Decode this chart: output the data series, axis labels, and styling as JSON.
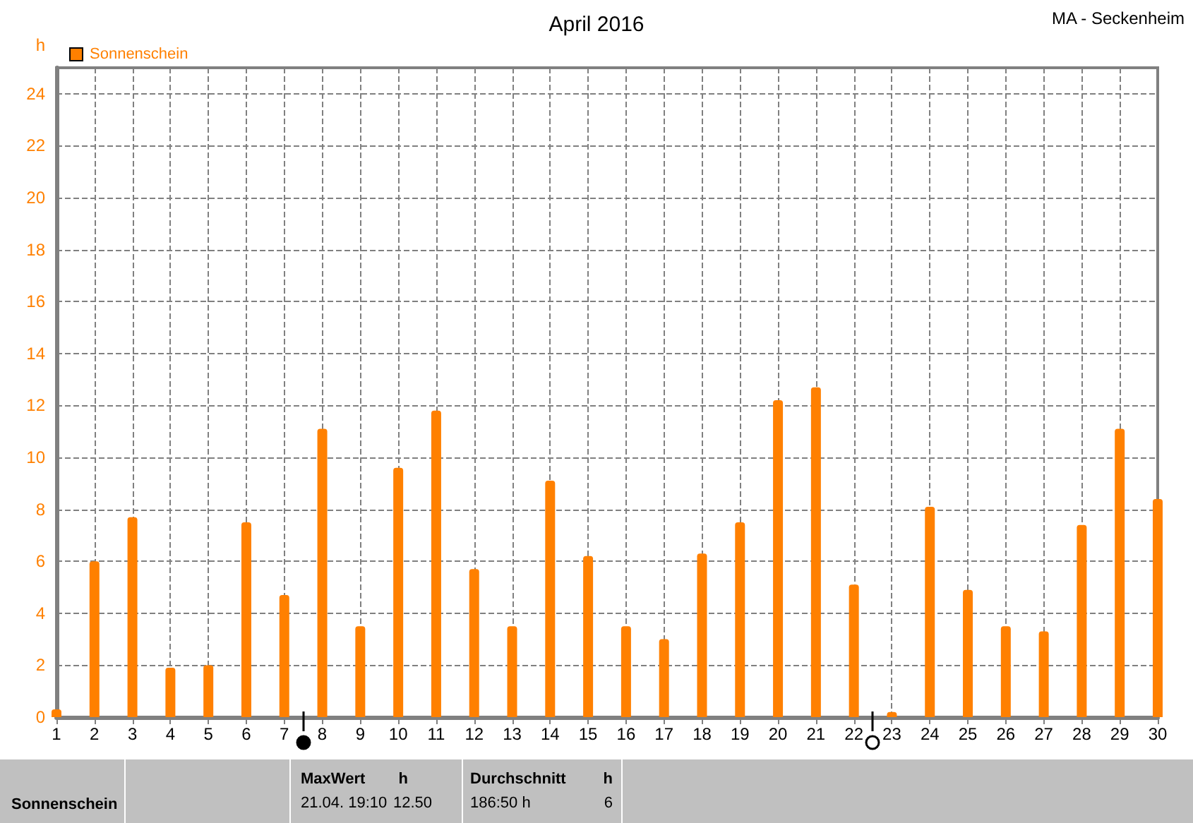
{
  "chart_data": {
    "type": "bar",
    "title": "April 2016",
    "ylabel": "h",
    "x": [
      1,
      2,
      3,
      4,
      5,
      6,
      7,
      8,
      9,
      10,
      11,
      12,
      13,
      14,
      15,
      16,
      17,
      18,
      19,
      20,
      21,
      22,
      23,
      24,
      25,
      26,
      27,
      28,
      29,
      30
    ],
    "series": [
      {
        "name": "Sonnenschein",
        "color": "#ff8000",
        "values": [
          0.3,
          6.0,
          7.7,
          1.9,
          2.0,
          7.5,
          4.7,
          11.1,
          3.5,
          9.6,
          11.8,
          5.7,
          3.5,
          9.1,
          6.2,
          3.5,
          3.0,
          6.3,
          7.5,
          12.2,
          12.7,
          5.1,
          0.2,
          8.1,
          4.9,
          3.5,
          3.3,
          7.4,
          11.1,
          8.4
        ]
      }
    ],
    "xlim": [
      1,
      30
    ],
    "xticks": [
      1,
      2,
      3,
      4,
      5,
      6,
      7,
      8,
      9,
      10,
      11,
      12,
      13,
      14,
      15,
      16,
      17,
      18,
      19,
      20,
      21,
      22,
      23,
      24,
      25,
      26,
      27,
      28,
      29,
      30
    ],
    "ylim": [
      0,
      25
    ],
    "yticks": [
      0,
      2,
      4,
      6,
      8,
      10,
      12,
      14,
      16,
      18,
      20,
      22,
      24
    ],
    "grid": true,
    "legend": "top left",
    "annotations": [
      "MA - Seckenheim",
      "Sonnenschein",
      "MaxWert",
      "h",
      "21.04.  19:10",
      "12.50",
      "Durchschnitt",
      "h",
      "186:50 h",
      "6"
    ]
  }
}
